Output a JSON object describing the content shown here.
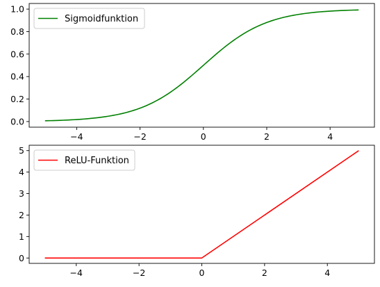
{
  "chart_data": [
    {
      "type": "line",
      "title": "",
      "xlabel": "",
      "ylabel": "",
      "xlim": [
        -5.5,
        5.4
      ],
      "ylim": [
        -0.05,
        1.05
      ],
      "xticks": [
        -4,
        -2,
        0,
        2,
        4
      ],
      "yticks": [
        0.0,
        0.2,
        0.4,
        0.6,
        0.8,
        1.0
      ],
      "xtick_labels": [
        "−4",
        "−2",
        "0",
        "2",
        "4"
      ],
      "ytick_labels": [
        "0.0",
        "0.2",
        "0.4",
        "0.6",
        "0.8",
        "1.0"
      ],
      "legend_position": "upper-left",
      "grid": false,
      "series": [
        {
          "name": "Sigmoidfunktion",
          "color": "#008000",
          "x": [
            -5,
            -4.5,
            -4,
            -3.5,
            -3,
            -2.5,
            -2,
            -1.5,
            -1,
            -0.5,
            0,
            0.5,
            1,
            1.5,
            2,
            2.5,
            3,
            3.5,
            4,
            4.5,
            4.9
          ],
          "y": [
            0.007,
            0.011,
            0.018,
            0.029,
            0.047,
            0.076,
            0.119,
            0.182,
            0.269,
            0.378,
            0.5,
            0.622,
            0.731,
            0.818,
            0.881,
            0.924,
            0.953,
            0.971,
            0.982,
            0.989,
            0.993
          ]
        }
      ]
    },
    {
      "type": "line",
      "title": "",
      "xlabel": "",
      "ylabel": "",
      "xlim": [
        -5.5,
        5.5
      ],
      "ylim": [
        -0.25,
        5.25
      ],
      "xticks": [
        -4,
        -2,
        0,
        2,
        4
      ],
      "yticks": [
        0,
        1,
        2,
        3,
        4,
        5
      ],
      "xtick_labels": [
        "−4",
        "−2",
        "0",
        "2",
        "4"
      ],
      "ytick_labels": [
        "0",
        "1",
        "2",
        "3",
        "4",
        "5"
      ],
      "legend_position": "upper-left",
      "grid": false,
      "series": [
        {
          "name": "ReLU-Funktion",
          "color": "#ff0000",
          "x": [
            -5,
            0,
            5
          ],
          "y": [
            0,
            0,
            5
          ]
        }
      ]
    }
  ]
}
